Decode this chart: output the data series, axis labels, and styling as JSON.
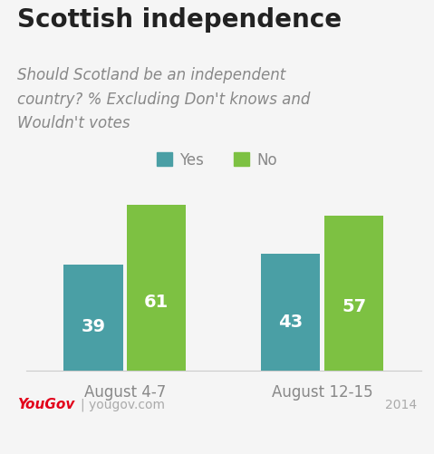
{
  "title": "Scottish independence",
  "subtitle": "Should Scotland be an independent\ncountry? % Excluding Don't knows and\nWouldn't votes",
  "categories": [
    "August 4-7",
    "August 12-15"
  ],
  "yes_values": [
    39,
    43
  ],
  "no_values": [
    61,
    57
  ],
  "yes_color": "#4a9fa5",
  "no_color": "#7dc142",
  "bar_width": 0.3,
  "ylim": [
    0,
    70
  ],
  "header_bg": "#e8e8e8",
  "chart_bg": "#f5f5f5",
  "yougov_red": "#e2001a",
  "footer_text_color": "#aaaaaa",
  "value_label_color": "#ffffff",
  "value_label_fontsize": 14,
  "title_fontsize": 20,
  "subtitle_fontsize": 12,
  "legend_fontsize": 12,
  "tick_label_fontsize": 12,
  "footer_fontsize": 10,
  "legend_label_color": "#888888"
}
